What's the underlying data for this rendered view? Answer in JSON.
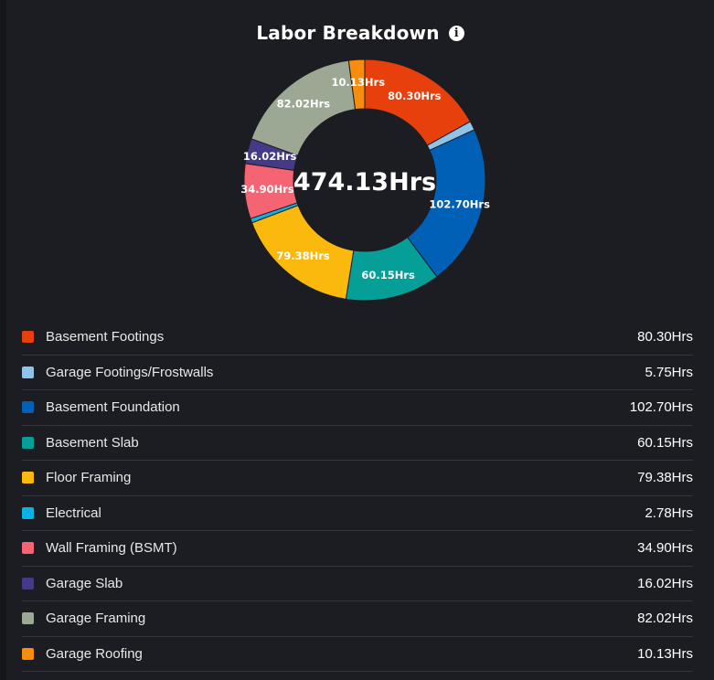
{
  "title": "Labor Breakdown",
  "info_icon": "info-icon",
  "chart_data": {
    "type": "pie",
    "title": "Labor Breakdown",
    "total_label": "474.13Hrs",
    "unit": "Hrs",
    "slices": [
      {
        "name": "Basement Footings",
        "value": 80.3,
        "label": "80.30Hrs",
        "color": "#e8400c"
      },
      {
        "name": "Garage Footings/Frostwalls",
        "value": 5.75,
        "label": "5.75Hrs",
        "color": "#8fc3ea"
      },
      {
        "name": "Basement Foundation",
        "value": 102.7,
        "label": "102.70Hrs",
        "color": "#0060b6"
      },
      {
        "name": "Basement Slab",
        "value": 60.15,
        "label": "60.15Hrs",
        "color": "#069f98"
      },
      {
        "name": "Floor Framing",
        "value": 79.38,
        "label": "79.38Hrs",
        "color": "#fbb90d"
      },
      {
        "name": "Electrical",
        "value": 2.78,
        "label": "2.78Hrs",
        "color": "#0ab3e2"
      },
      {
        "name": "Wall Framing (BSMT)",
        "value": 34.9,
        "label": "34.90Hrs",
        "color": "#f56472"
      },
      {
        "name": "Garage Slab",
        "value": 16.02,
        "label": "16.02Hrs",
        "color": "#453a86"
      },
      {
        "name": "Garage Framing",
        "value": 82.02,
        "label": "82.02Hrs",
        "color": "#9ca894"
      },
      {
        "name": "Garage Roofing",
        "value": 10.13,
        "label": "10.13Hrs",
        "color": "#f98c0c"
      }
    ],
    "slice_labels_shown": [
      "80.30Hrs",
      "102.70Hrs",
      "60.15Hrs",
      "79.38Hrs",
      "34.90Hrs",
      "16.02Hrs",
      "82.02Hrs",
      "10.13Hrs"
    ]
  }
}
